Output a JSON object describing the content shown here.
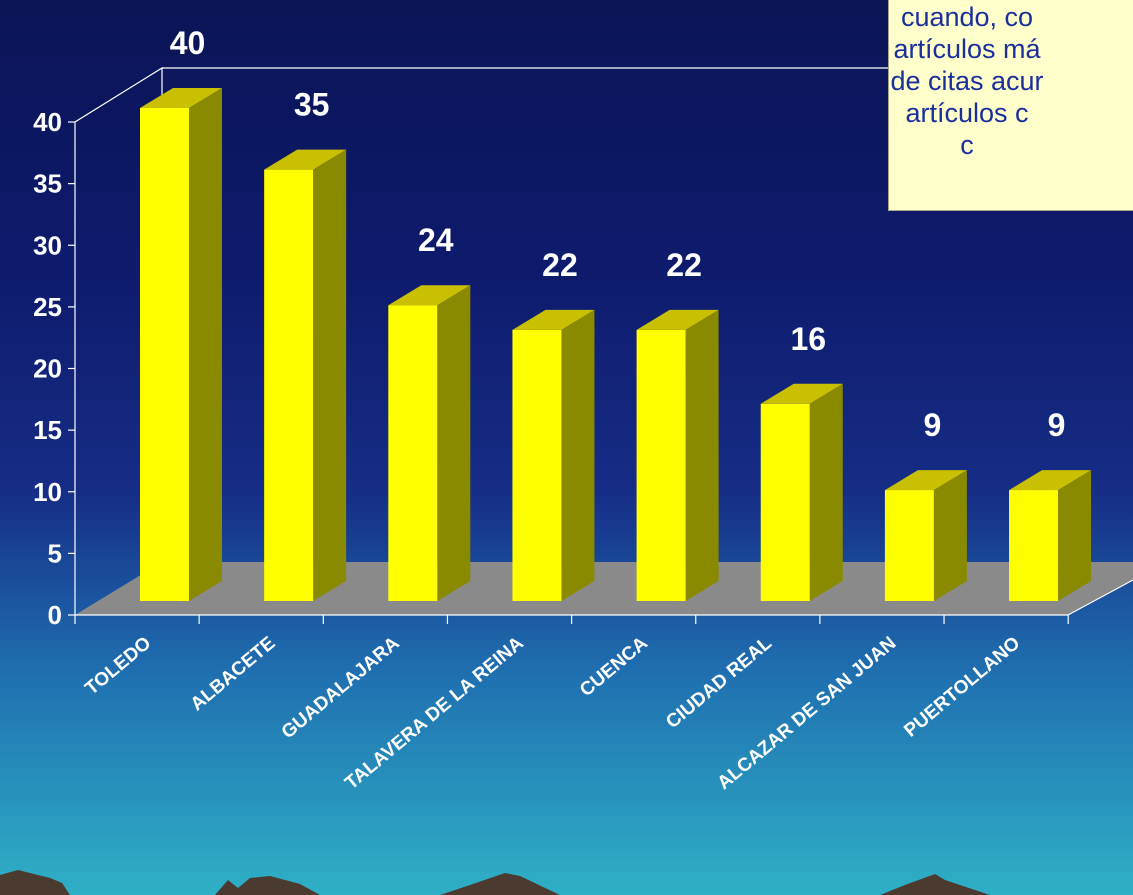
{
  "chart_data": {
    "type": "bar",
    "categories": [
      "TOLEDO",
      "ALBACETE",
      "GUADALAJARA",
      "TALAVERA DE LA REINA",
      "CUENCA",
      "CIUDAD REAL",
      "ALCAZAR DE SAN JUAN",
      "PUERTOLLANO"
    ],
    "values": [
      40,
      35,
      24,
      22,
      22,
      16,
      9,
      9
    ],
    "ylim": [
      0,
      40
    ],
    "yticks": [
      "0",
      "5",
      "10",
      "15",
      "20",
      "25",
      "30",
      "35",
      "40"
    ],
    "data_labels": [
      "40",
      "35",
      "24",
      "22",
      "22",
      "16",
      "9",
      "9"
    ],
    "bar_color": "#ffff00",
    "style": "3d",
    "grid": false,
    "legend": "none"
  },
  "note": {
    "lines": [
      "cuando, co",
      "artículos má",
      "de citas acur",
      "artículos c",
      "c"
    ]
  },
  "colors": {
    "background_top": "#0b1456",
    "background_bottom": "#2fb0c6",
    "bar_front": "#ffff00",
    "bar_top": "#c8c000",
    "bar_side": "#8a8a00",
    "floor": "#8a8a8a",
    "text": "#ffffff",
    "note_bg": "#ffffcc",
    "note_text": "#1a2f9c"
  }
}
